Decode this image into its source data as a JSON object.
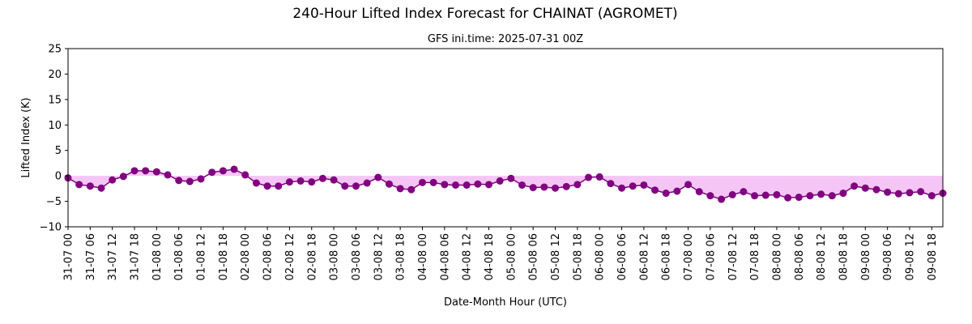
{
  "chart_data": {
    "type": "line",
    "title": "240-Hour Lifted Index Forecast for CHAINAT (AGROMET)",
    "subtitle": "GFS ini.time: 2025-07-31 00Z",
    "xlabel": "Date-Month Hour (UTC)",
    "ylabel": "Lifted Index (K)",
    "ylim": [
      -10,
      25
    ],
    "yticks": [
      -10,
      -5,
      0,
      5,
      10,
      15,
      20,
      25
    ],
    "x_step_hours": 3,
    "xticks": [
      "31-07 00",
      "31-07 06",
      "31-07 12",
      "31-07 18",
      "01-08 00",
      "01-08 06",
      "01-08 12",
      "01-08 18",
      "02-08 00",
      "02-08 06",
      "02-08 12",
      "02-08 18",
      "03-08 00",
      "03-08 06",
      "03-08 12",
      "03-08 18",
      "04-08 00",
      "04-08 06",
      "04-08 12",
      "04-08 18",
      "05-08 00",
      "05-08 06",
      "05-08 12",
      "05-08 18",
      "06-08 00",
      "06-08 06",
      "06-08 12",
      "06-08 18",
      "07-08 00",
      "07-08 06",
      "07-08 12",
      "07-08 18",
      "08-08 00",
      "08-08 06",
      "08-08 12",
      "08-08 18",
      "09-08 00",
      "09-08 06",
      "09-08 12",
      "09-08 18"
    ],
    "series": [
      {
        "values": [
          -0.4,
          -1.7,
          -2.0,
          -2.4,
          -0.8,
          -0.1,
          1.0,
          1.0,
          0.8,
          0.2,
          -0.9,
          -1.1,
          -0.6,
          0.7,
          1.0,
          1.3,
          0.2,
          -1.4,
          -2.0,
          -2.0,
          -1.2,
          -1.0,
          -1.2,
          -0.5,
          -0.8,
          -2.0,
          -2.0,
          -1.4,
          -0.3,
          -1.6,
          -2.5,
          -2.7,
          -1.3,
          -1.3,
          -1.7,
          -1.8,
          -1.8,
          -1.6,
          -1.7,
          -1.0,
          -0.5,
          -1.8,
          -2.3,
          -2.2,
          -2.4,
          -2.1,
          -1.7,
          -0.3,
          -0.2,
          -1.5,
          -2.4,
          -2.0,
          -1.8,
          -2.8,
          -3.4,
          -3.0,
          -1.7,
          -3.1,
          -3.9,
          -4.6,
          -3.7,
          -3.1,
          -3.9,
          -3.8,
          -3.7,
          -4.3,
          -4.2,
          -3.9,
          -3.6,
          -3.9,
          -3.4,
          -2.0,
          -2.4,
          -2.7,
          -3.2,
          -3.5,
          -3.3,
          -3.1,
          -3.9,
          -3.4
        ]
      }
    ],
    "colors": {
      "line": "#800080",
      "marker": "#800080",
      "fill_below_zero": "#f5c6f5",
      "fill_above_zero": "#f5c6f5"
    },
    "grid": false,
    "legend": "none"
  }
}
